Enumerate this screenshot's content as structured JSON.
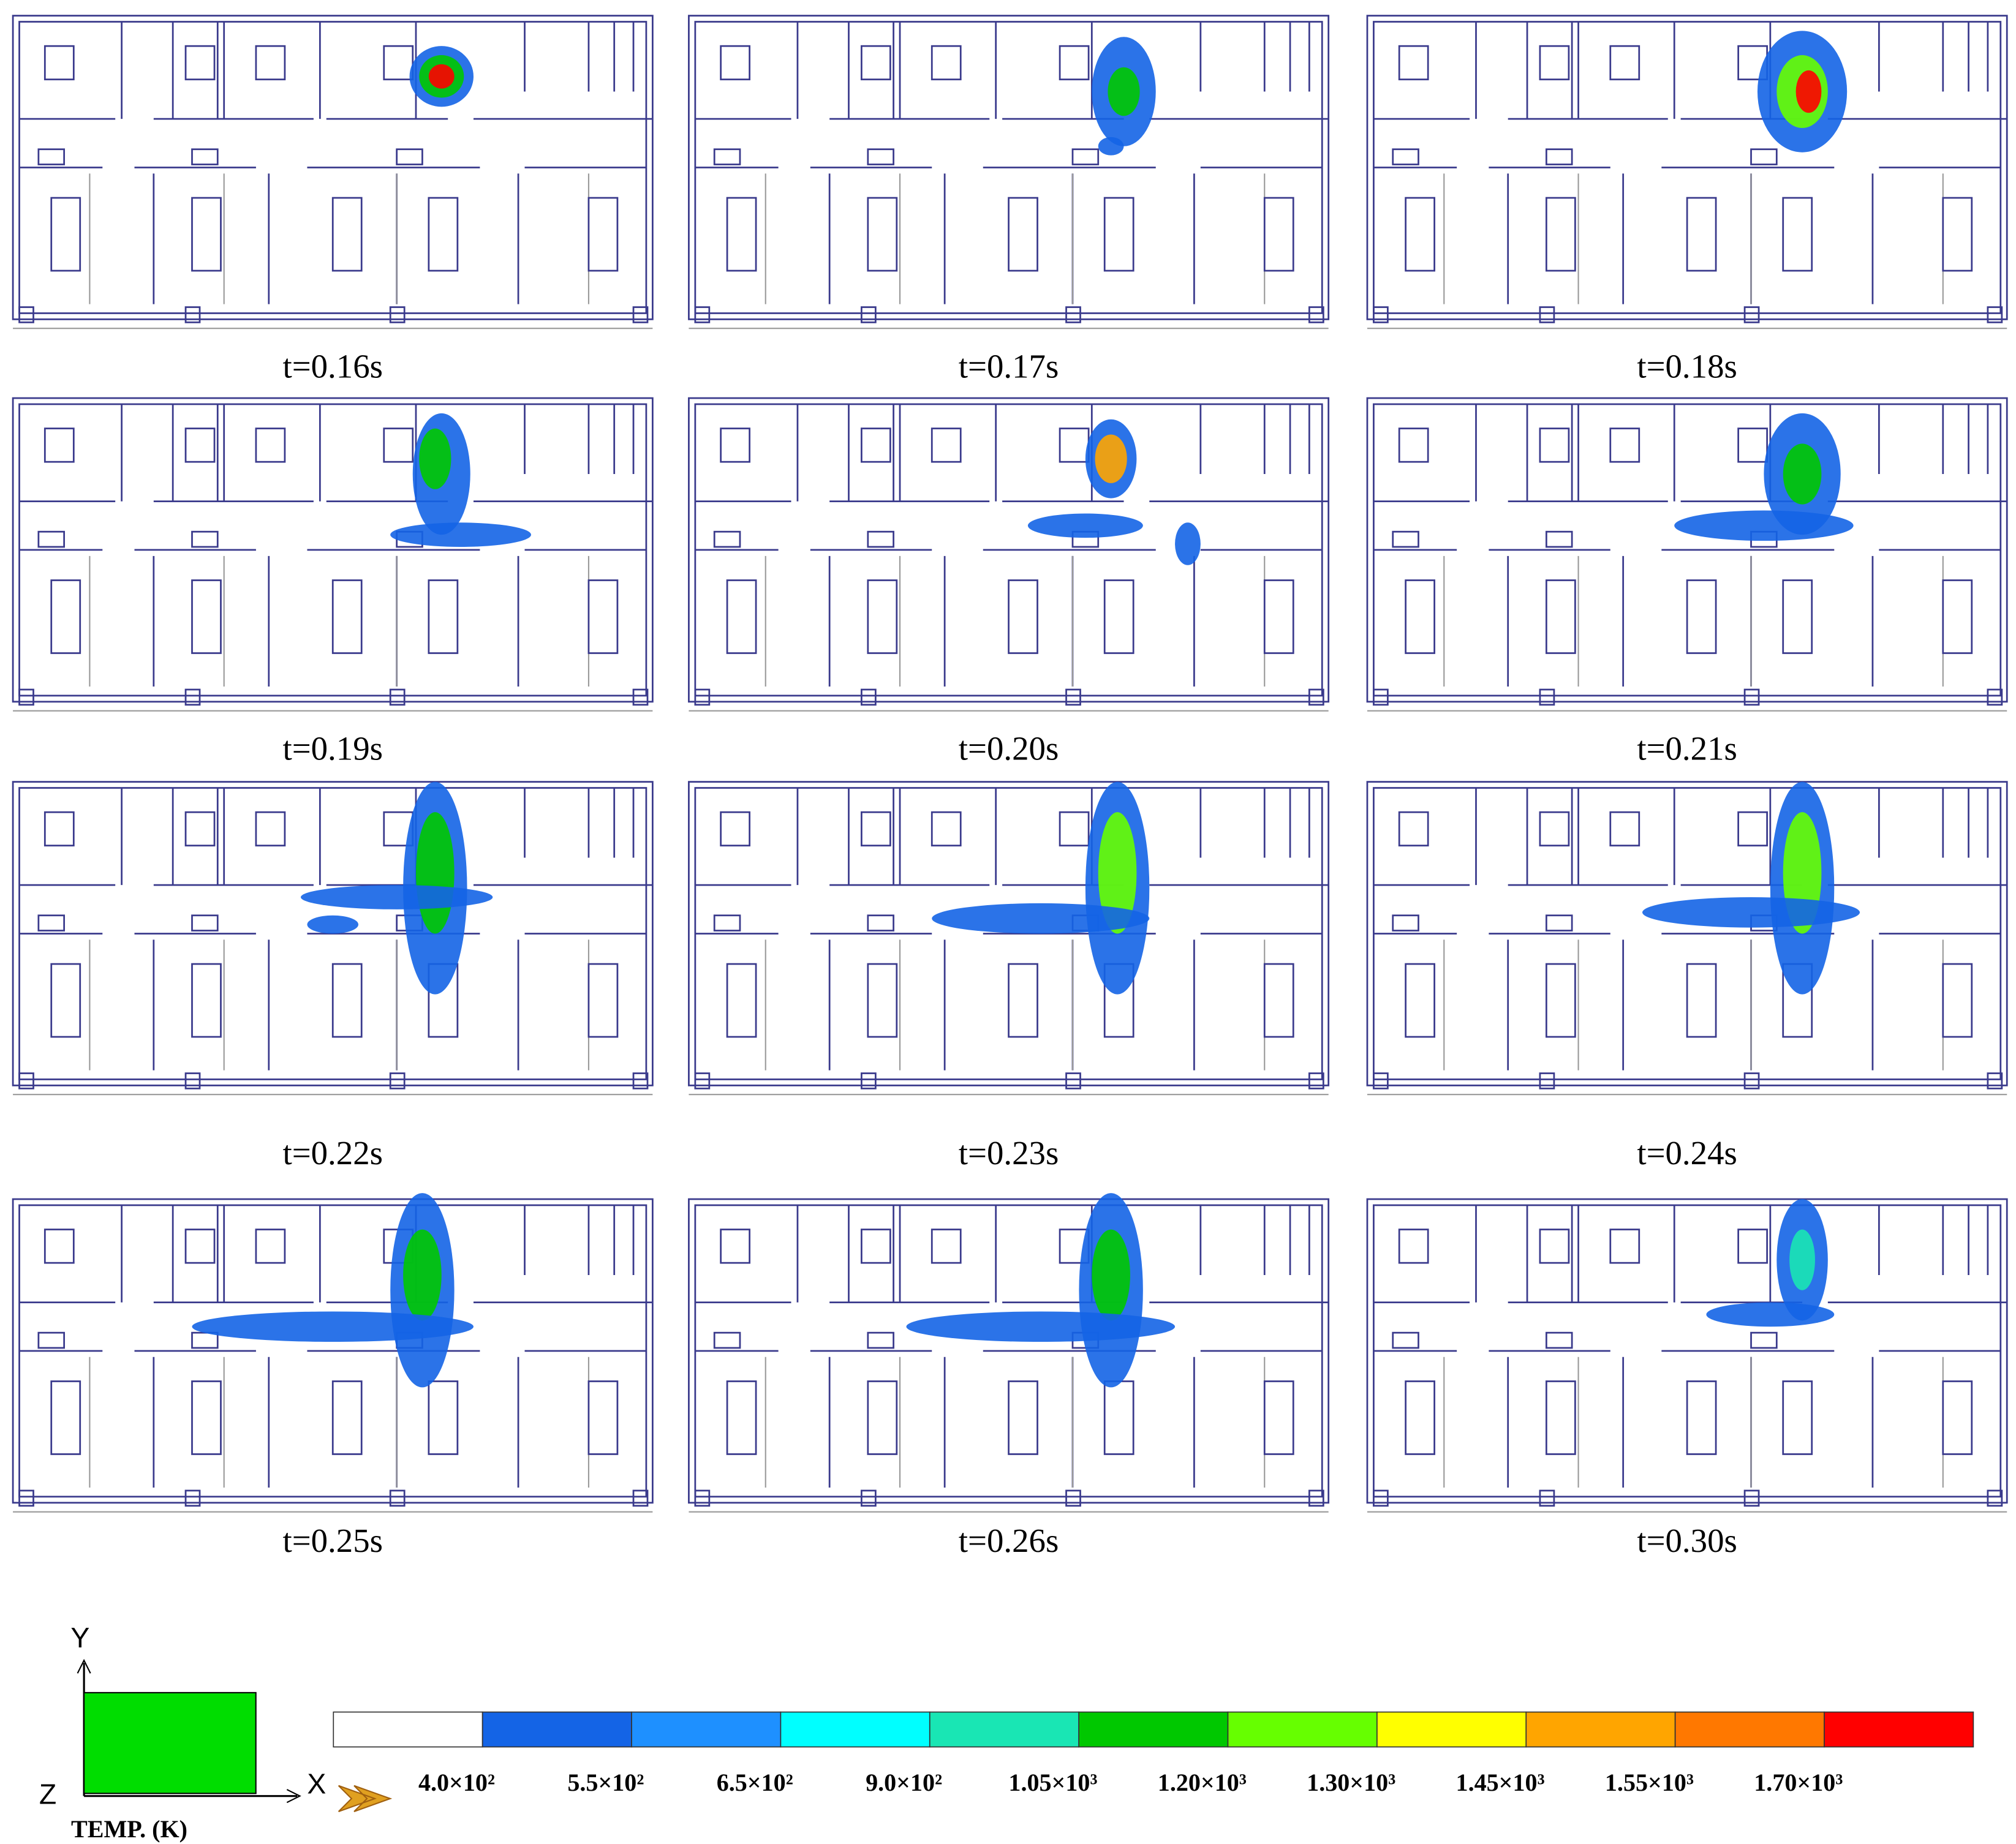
{
  "panels": [
    {
      "label": "t=0.16s"
    },
    {
      "label": "t=0.17s"
    },
    {
      "label": "t=0.18s"
    },
    {
      "label": "t=0.19s"
    },
    {
      "label": "t=0.20s"
    },
    {
      "label": "t=0.21s"
    },
    {
      "label": "t=0.22s"
    },
    {
      "label": "t=0.23s"
    },
    {
      "label": "t=0.24s"
    },
    {
      "label": "t=0.25s"
    },
    {
      "label": "t=0.26s"
    },
    {
      "label": "t=0.30s"
    }
  ],
  "legend": {
    "title": "TEMP. (K)",
    "colors": [
      "#ffffff",
      "#1464e6",
      "#1e90ff",
      "#00ffff",
      "#19e6b4",
      "#00c800",
      "#66ff00",
      "#ffff00",
      "#ffa500",
      "#ff7800",
      "#ff0000"
    ],
    "labels": [
      "4.0×10²",
      "5.5×10²",
      "6.5×10²",
      "9.0×10²",
      "1.05×10³",
      "1.20×10³",
      "1.30×10³",
      "1.45×10³",
      "1.55×10³",
      "1.70×10³"
    ]
  },
  "axes": {
    "y": "Y",
    "x": "X",
    "z": "Z"
  }
}
